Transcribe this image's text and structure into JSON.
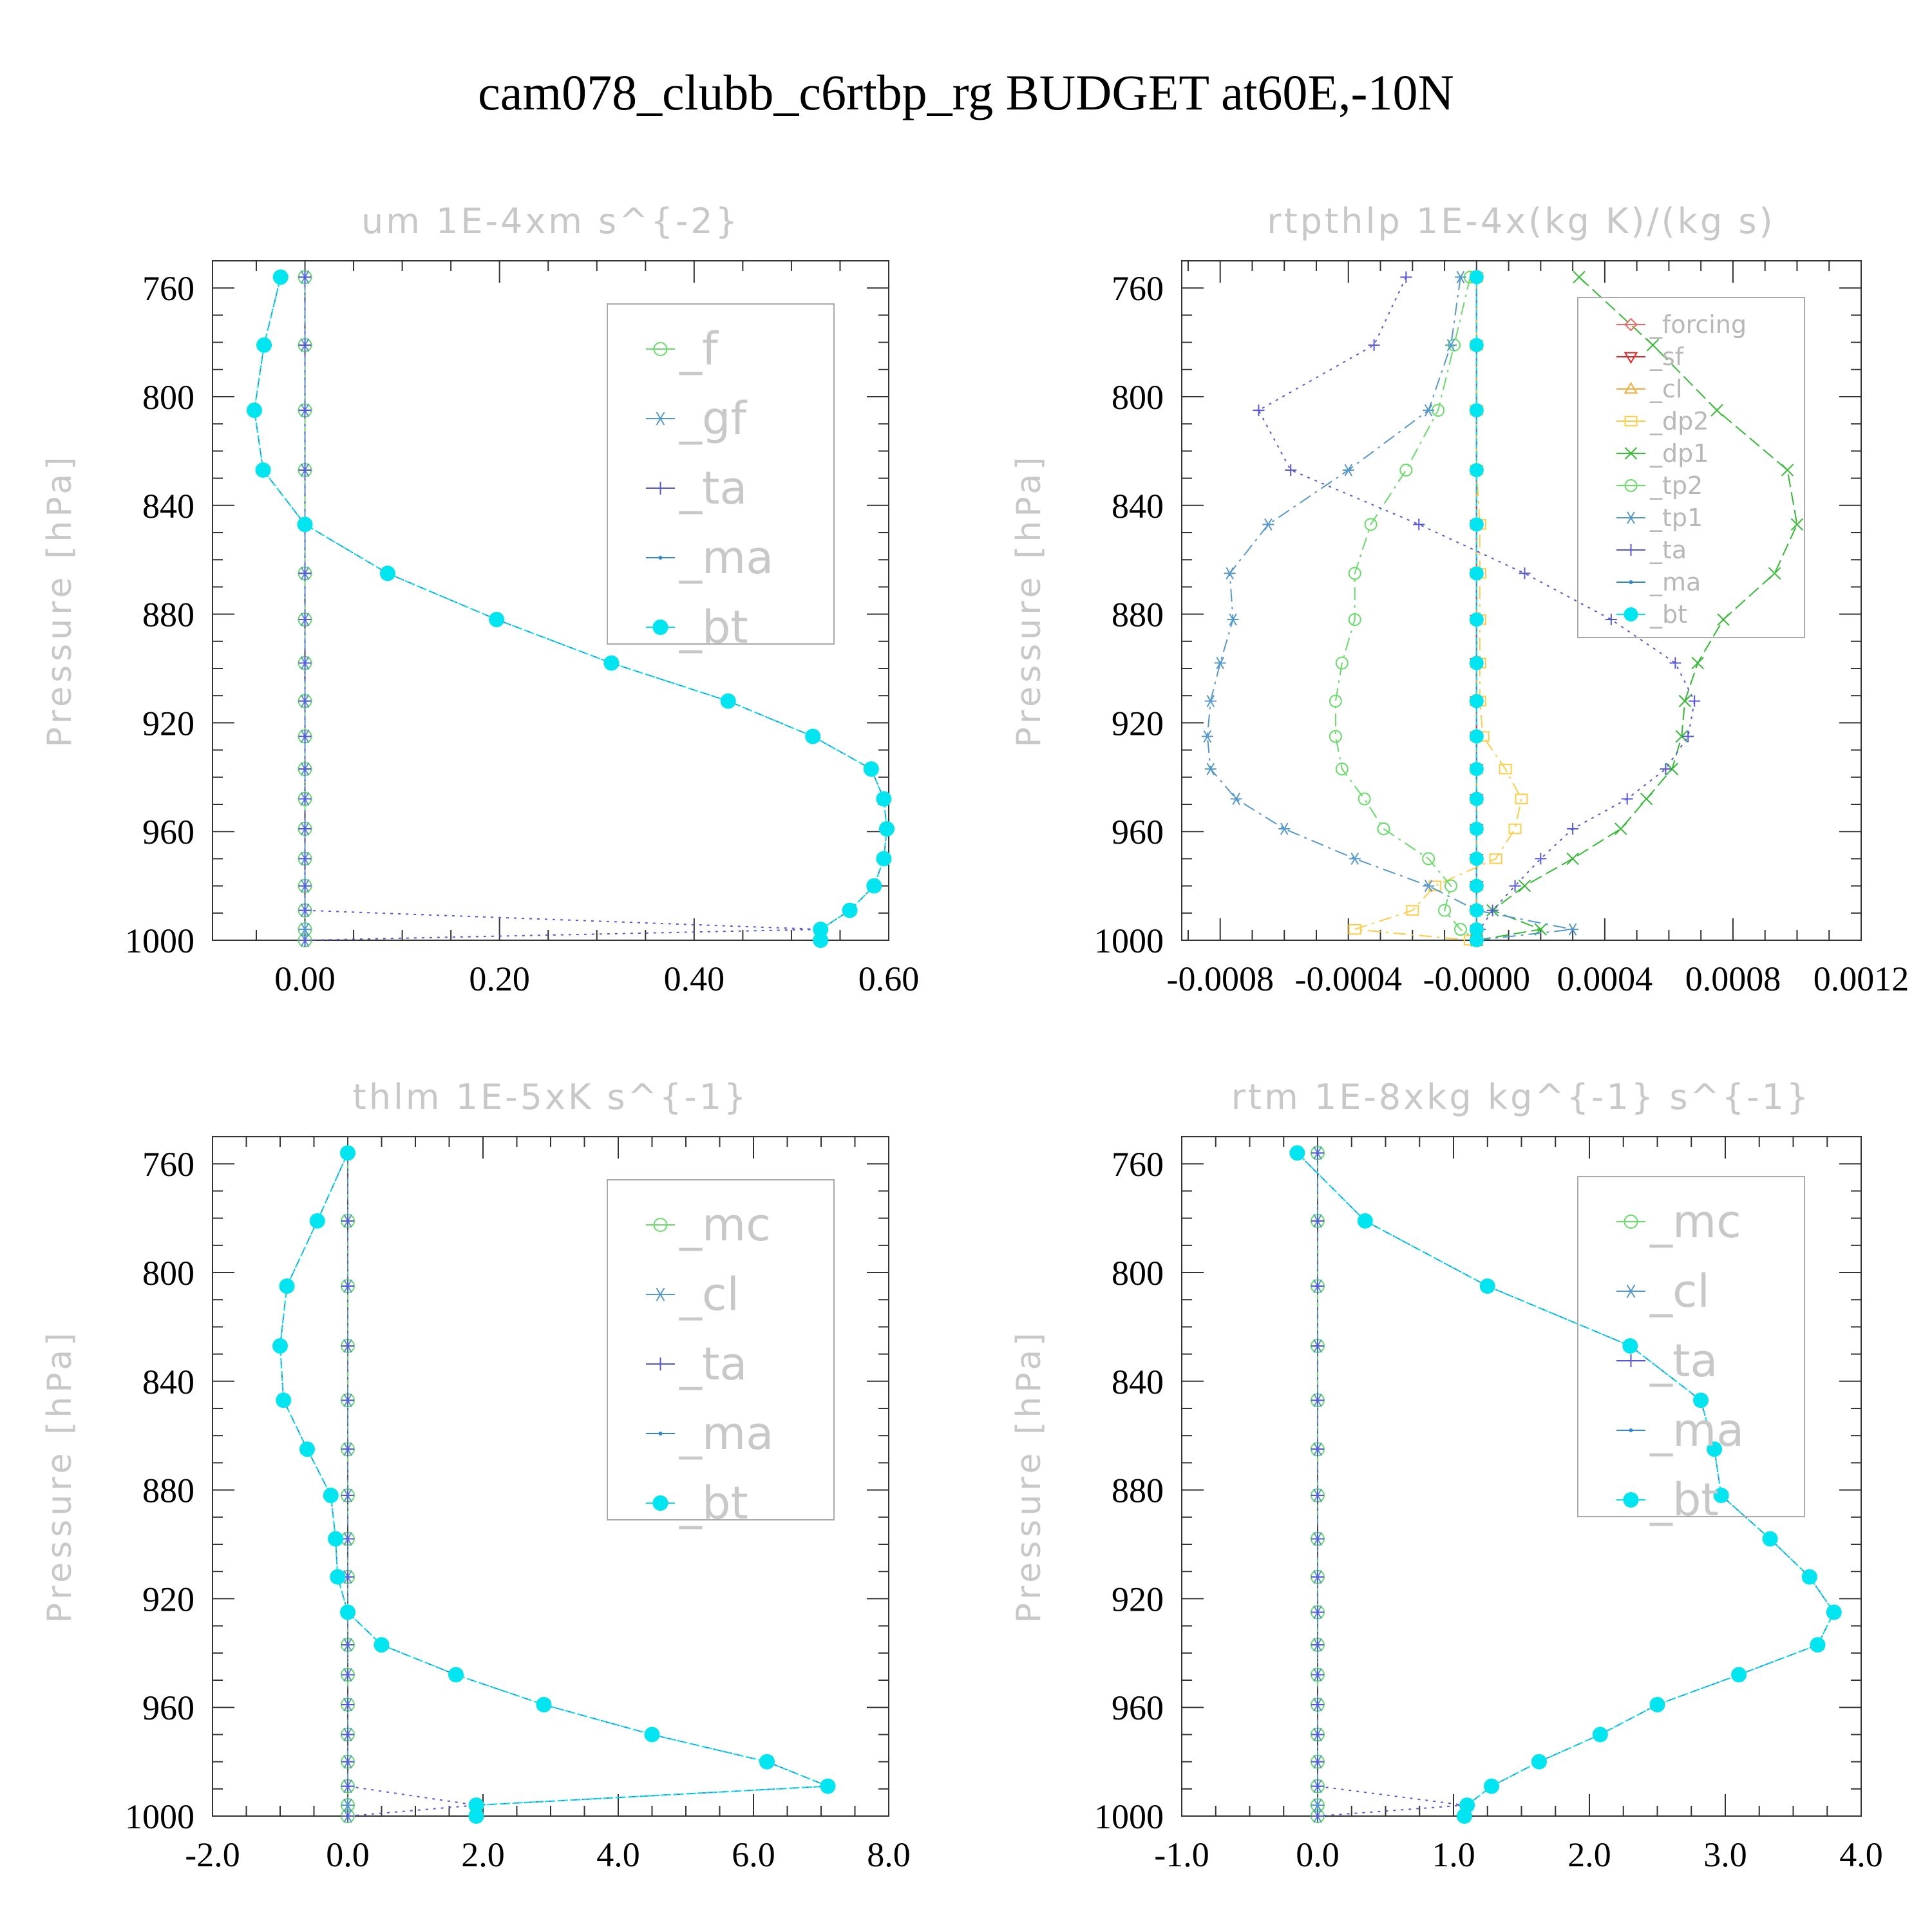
{
  "figure_title": "cam078_clubb_c6rtbp_rg  BUDGET at60E,-10N",
  "chart_data": [
    {
      "type": "line",
      "title": "um  1E-4xm s^{-2}",
      "ylabel": "Pressure [hPa]",
      "xlim": [
        -0.095,
        0.6
      ],
      "ylim": [
        1000,
        750
      ],
      "xticks": [
        0.0,
        0.2,
        0.4,
        0.6
      ],
      "xtick_labels": [
        "0.00",
        "0.20",
        "0.40",
        "0.60"
      ],
      "yticks": [
        760,
        800,
        840,
        880,
        920,
        960,
        1000
      ],
      "ytick_labels": [
        "760",
        "800",
        "840",
        "880",
        "920",
        "960",
        "1000"
      ],
      "legend_style": "big",
      "pressure": [
        756,
        781,
        805,
        827,
        847,
        865,
        882,
        898,
        912,
        925,
        937,
        948,
        959,
        970,
        980,
        989,
        996,
        1000
      ],
      "series": [
        {
          "name": "_f",
          "color": "#66dd66",
          "marker": "circle-open",
          "dash": "30,12",
          "values": [
            0,
            0,
            0,
            0,
            0,
            0,
            0,
            0,
            0,
            0,
            0,
            0,
            0,
            0,
            0,
            0,
            0,
            0
          ]
        },
        {
          "name": "_gf",
          "color": "#5599cc",
          "marker": "asterisk",
          "dash": "20,8,4,8",
          "values": [
            0,
            0,
            0,
            0,
            0,
            0,
            0,
            0,
            0,
            0,
            0,
            0,
            0,
            0,
            0,
            0,
            0,
            0
          ]
        },
        {
          "name": "_ta",
          "color": "#5555dd",
          "marker": "plus",
          "dash": "4,8",
          "values": [
            0,
            0,
            0,
            0,
            0,
            0,
            0,
            0,
            0,
            0,
            0,
            0,
            0,
            0,
            0,
            0,
            0.53,
            0.0
          ]
        },
        {
          "name": "_ma",
          "color": "#3388cc",
          "marker": "dot",
          "dash": "12,6",
          "values": [
            -0.025,
            -0.042,
            -0.052,
            -0.043,
            0.0,
            0.085,
            0.197,
            0.315,
            0.435,
            0.522,
            0.582,
            0.595,
            0.598,
            0.595,
            0.585,
            0.56,
            0.53,
            0.53
          ]
        },
        {
          "name": "_bt",
          "color": "#00e5f0",
          "marker": "filled-circle",
          "dash": "6,4",
          "values": [
            -0.025,
            -0.042,
            -0.052,
            -0.043,
            0.0,
            0.085,
            0.197,
            0.315,
            0.435,
            0.522,
            0.582,
            0.595,
            0.598,
            0.595,
            0.585,
            0.56,
            0.53,
            0.53
          ]
        }
      ]
    },
    {
      "type": "line",
      "title": "rtpthlp  1E-4x(kg K)/(kg s)",
      "ylabel": "Pressure [hPa]",
      "xlim": [
        -0.00092,
        0.0012
      ],
      "ylim": [
        1000,
        750
      ],
      "xticks": [
        -0.0008,
        -0.0004,
        0.0,
        0.0004,
        0.0008,
        0.0012
      ],
      "xtick_labels": [
        "-0.0008",
        "-0.0004",
        "-0.0000",
        "0.0004",
        "0.0008",
        "0.0012"
      ],
      "yticks": [
        760,
        800,
        840,
        880,
        920,
        960,
        1000
      ],
      "ytick_labels": [
        "760",
        "800",
        "840",
        "880",
        "920",
        "960",
        "1000"
      ],
      "legend_style": "small",
      "pressure": [
        756,
        781,
        805,
        827,
        847,
        865,
        882,
        898,
        912,
        925,
        937,
        948,
        959,
        970,
        980,
        989,
        996,
        1000
      ],
      "series": [
        {
          "name": "_forcing",
          "color": "#ee6666",
          "marker": "diamond-open",
          "dash": "",
          "values": [
            0,
            0,
            0,
            0,
            0,
            0,
            0,
            0,
            0,
            0,
            0,
            0,
            0,
            0,
            0,
            0,
            0,
            0
          ]
        },
        {
          "name": "_sf",
          "color": "#ee2222",
          "marker": "triangle-down",
          "dash": "",
          "values": [
            0,
            0,
            0,
            0,
            0,
            0,
            0,
            0,
            0,
            0,
            0,
            0,
            0,
            0,
            0,
            0,
            0,
            0
          ]
        },
        {
          "name": "_cl",
          "color": "#ffaa33",
          "marker": "triangle-up",
          "dash": "20,8",
          "values": [
            0,
            0,
            0,
            0,
            0,
            0,
            0,
            0,
            0,
            0,
            0,
            0,
            0,
            0,
            0,
            0,
            0,
            0
          ]
        },
        {
          "name": "_dp2",
          "color": "#ffcc44",
          "marker": "square-open",
          "dash": "20,8,4,8",
          "values": [
            0,
            0,
            0,
            0,
            1e-05,
            1e-05,
            1e-05,
            1e-05,
            1e-05,
            2e-05,
            9e-05,
            0.00014,
            0.00012,
            6e-05,
            -0.00013,
            -0.0002,
            -0.00038,
            -2e-05
          ]
        },
        {
          "name": "_dp1",
          "color": "#33bb33",
          "marker": "x",
          "dash": "20,8",
          "values": [
            0.00032,
            0.00055,
            0.00075,
            0.00097,
            0.001,
            0.00093,
            0.00077,
            0.00069,
            0.00065,
            0.00064,
            0.00061,
            0.00053,
            0.00045,
            0.0003,
            0.00015,
            5e-05,
            0.0002,
            0.0
          ]
        },
        {
          "name": "_tp2",
          "color": "#66dd66",
          "marker": "circle-open",
          "dash": "20,8,4,8",
          "values": [
            -2e-05,
            -7e-05,
            -0.00012,
            -0.00022,
            -0.00033,
            -0.00038,
            -0.00038,
            -0.00042,
            -0.00044,
            -0.00044,
            -0.00042,
            -0.00035,
            -0.00029,
            -0.00015,
            -8e-05,
            -0.0001,
            -5e-05,
            0.0
          ]
        },
        {
          "name": "_tp1",
          "color": "#5599cc",
          "marker": "asterisk",
          "dash": "20,8,4,8",
          "values": [
            -5e-05,
            -8e-05,
            -0.00015,
            -0.0004,
            -0.00065,
            -0.00077,
            -0.00076,
            -0.0008,
            -0.00083,
            -0.00084,
            -0.00083,
            -0.00075,
            -0.0006,
            -0.00038,
            -0.00015,
            0.0,
            0.0003,
            0.0
          ]
        },
        {
          "name": "_ta",
          "color": "#5555dd",
          "marker": "plus",
          "dash": "4,8",
          "values": [
            -0.00022,
            -0.00032,
            -0.00068,
            -0.00058,
            -0.00018,
            0.00015,
            0.00042,
            0.00062,
            0.00068,
            0.00066,
            0.00059,
            0.00047,
            0.0003,
            0.0002,
            0.00012,
            5e-05,
            1e-05,
            0.0
          ]
        },
        {
          "name": "_ma",
          "color": "#3388cc",
          "marker": "dot",
          "dash": "12,6",
          "values": [
            0,
            0,
            0,
            0,
            0,
            0,
            0,
            0,
            0,
            0,
            0,
            0,
            0,
            0,
            0,
            0,
            0,
            0
          ]
        },
        {
          "name": "_bt",
          "color": "#00e5f0",
          "marker": "filled-circle",
          "dash": "6,4",
          "values": [
            0,
            0,
            0,
            0,
            0,
            0,
            0,
            0,
            0,
            0,
            0,
            0,
            0,
            0,
            0,
            0,
            0,
            0
          ]
        }
      ]
    },
    {
      "type": "line",
      "title": "thlm  1E-5xK s^{-1}",
      "ylabel": "Pressure [hPa]",
      "xlim": [
        -2.0,
        8.0
      ],
      "ylim": [
        1000,
        750
      ],
      "xticks": [
        -2,
        0,
        2,
        4,
        6,
        8
      ],
      "xtick_labels": [
        "-2.0",
        "0.0",
        "2.0",
        "4.0",
        "6.0",
        "8.0"
      ],
      "yticks": [
        760,
        800,
        840,
        880,
        920,
        960,
        1000
      ],
      "ytick_labels": [
        "760",
        "800",
        "840",
        "880",
        "920",
        "960",
        "1000"
      ],
      "legend_style": "big",
      "pressure": [
        756,
        781,
        805,
        827,
        847,
        865,
        882,
        898,
        912,
        925,
        937,
        948,
        959,
        970,
        980,
        989,
        996,
        1000
      ],
      "series": [
        {
          "name": "_mc",
          "color": "#66dd66",
          "marker": "circle-open",
          "dash": "30,12",
          "values": [
            0,
            0,
            0,
            0,
            0,
            0,
            0,
            0,
            0,
            0,
            0,
            0,
            0,
            0,
            0,
            0,
            0,
            0
          ]
        },
        {
          "name": "_cl",
          "color": "#5599cc",
          "marker": "asterisk",
          "dash": "20,8,4,8",
          "values": [
            0,
            0,
            0,
            0,
            0,
            0,
            0,
            0,
            0,
            0,
            0,
            0,
            0,
            0,
            0,
            0,
            0,
            0
          ]
        },
        {
          "name": "_ta",
          "color": "#5555dd",
          "marker": "plus",
          "dash": "4,8",
          "values": [
            0,
            0,
            0,
            0,
            0,
            0,
            0,
            0,
            0,
            0,
            0,
            0,
            0,
            0,
            0,
            0,
            1.9,
            0.0
          ]
        },
        {
          "name": "_ma",
          "color": "#3388cc",
          "marker": "dot",
          "dash": "12,6",
          "values": [
            0.0,
            -0.45,
            -0.9,
            -1.0,
            -0.95,
            -0.6,
            -0.25,
            -0.18,
            -0.15,
            0.0,
            0.5,
            1.6,
            2.9,
            4.5,
            6.2,
            7.1,
            1.9,
            1.9
          ]
        },
        {
          "name": "_bt",
          "color": "#00e5f0",
          "marker": "filled-circle",
          "dash": "6,4",
          "values": [
            0.0,
            -0.45,
            -0.9,
            -1.0,
            -0.95,
            -0.6,
            -0.25,
            -0.18,
            -0.15,
            0.0,
            0.5,
            1.6,
            2.9,
            4.5,
            6.2,
            7.1,
            1.9,
            1.9
          ]
        }
      ]
    },
    {
      "type": "line",
      "title": "rtm  1E-8xkg kg^{-1} s^{-1}",
      "ylabel": "Pressure [hPa]",
      "xlim": [
        -1.0,
        4.0
      ],
      "ylim": [
        1000,
        750
      ],
      "xticks": [
        -1,
        0,
        1,
        2,
        3,
        4
      ],
      "xtick_labels": [
        "-1.0",
        "0.0",
        "1.0",
        "2.0",
        "3.0",
        "4.0"
      ],
      "yticks": [
        760,
        800,
        840,
        880,
        920,
        960,
        1000
      ],
      "ytick_labels": [
        "760",
        "800",
        "840",
        "880",
        "920",
        "960",
        "1000"
      ],
      "legend_style": "big",
      "pressure": [
        756,
        781,
        805,
        827,
        847,
        865,
        882,
        898,
        912,
        925,
        937,
        948,
        959,
        970,
        980,
        989,
        996,
        1000
      ],
      "series": [
        {
          "name": "_mc",
          "color": "#66dd66",
          "marker": "circle-open",
          "dash": "30,12",
          "values": [
            0,
            0,
            0,
            0,
            0,
            0,
            0,
            0,
            0,
            0,
            0,
            0,
            0,
            0,
            0,
            0,
            0,
            0
          ]
        },
        {
          "name": "_cl",
          "color": "#5599cc",
          "marker": "asterisk",
          "dash": "20,8,4,8",
          "values": [
            0,
            0,
            0,
            0,
            0,
            0,
            0,
            0,
            0,
            0,
            0,
            0,
            0,
            0,
            0,
            0,
            0,
            0
          ]
        },
        {
          "name": "_ta",
          "color": "#5555dd",
          "marker": "plus",
          "dash": "4,8",
          "values": [
            0,
            0,
            0,
            0,
            0,
            0,
            0,
            0,
            0,
            0,
            0,
            0,
            0,
            0,
            0,
            0,
            1.08,
            0.0
          ]
        },
        {
          "name": "_ma",
          "color": "#3388cc",
          "marker": "dot",
          "dash": "12,6",
          "values": [
            -0.15,
            0.35,
            1.25,
            2.3,
            2.82,
            2.92,
            2.97,
            3.33,
            3.62,
            3.8,
            3.68,
            3.1,
            2.5,
            2.08,
            1.63,
            1.28,
            1.1,
            1.08
          ]
        },
        {
          "name": "_bt",
          "color": "#00e5f0",
          "marker": "filled-circle",
          "dash": "6,4",
          "values": [
            -0.15,
            0.35,
            1.25,
            2.3,
            2.82,
            2.92,
            2.97,
            3.33,
            3.62,
            3.8,
            3.68,
            3.1,
            2.5,
            2.08,
            1.63,
            1.28,
            1.1,
            1.08
          ]
        }
      ]
    }
  ]
}
